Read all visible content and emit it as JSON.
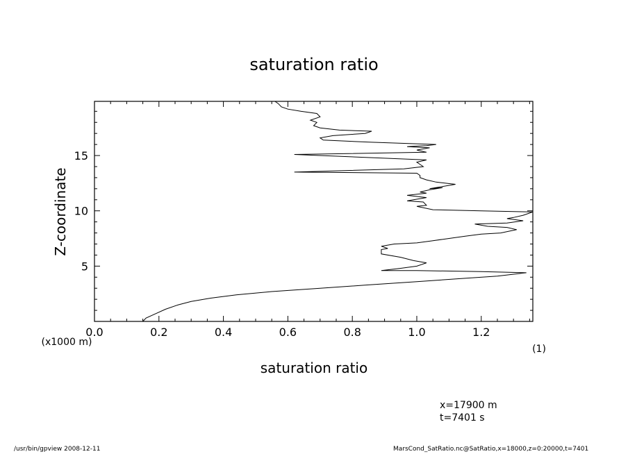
{
  "chart_data": {
    "type": "line",
    "title": "saturation ratio",
    "xlabel": "saturation ratio",
    "xlabel_unit": "(1)",
    "ylabel": "Z-coordinate",
    "ylabel_unit": "(x1000 m)",
    "xlim": [
      0.0,
      1.36
    ],
    "ylim": [
      0.0,
      19.9
    ],
    "xticks": [
      "0.0",
      "0.2",
      "0.4",
      "0.6",
      "0.8",
      "1.0",
      "1.2"
    ],
    "yticks": [
      "5",
      "10",
      "15"
    ],
    "grid": false,
    "series": [
      {
        "x": [
          0.15,
          0.16,
          0.19,
          0.22,
          0.26,
          0.3,
          0.36,
          0.44,
          0.55,
          0.7,
          0.85,
          1.0,
          1.15,
          1.25,
          1.31,
          1.34,
          1.2,
          1.0,
          0.89,
          0.95,
          1.0,
          1.03,
          0.99,
          0.95,
          0.89,
          0.89,
          0.91,
          0.89,
          0.93,
          1.0,
          1.05,
          1.1,
          1.15,
          1.2,
          1.26,
          1.31,
          1.28,
          1.22,
          1.18,
          1.28,
          1.33,
          1.28,
          1.3,
          1.33,
          1.36,
          1.2,
          1.05,
          1.0,
          1.03,
          1.02,
          0.97,
          0.99,
          1.03,
          1.0,
          0.97,
          1.03,
          1.01,
          1.04,
          1.08,
          1.04,
          1.12,
          1.06,
          1.03,
          1.01,
          1.01,
          1.0,
          0.62,
          0.96,
          1.02,
          1.0,
          1.03,
          0.62,
          1.03,
          1.0,
          1.04,
          0.97,
          1.03,
          1.06,
          0.86,
          0.71,
          0.7,
          0.74,
          0.84,
          0.86,
          0.76,
          0.7,
          0.68,
          0.69,
          0.67,
          0.7,
          0.69,
          0.64,
          0.6,
          0.58,
          0.57,
          0.56
        ],
        "y": [
          0.0,
          0.3,
          0.7,
          1.1,
          1.5,
          1.8,
          2.1,
          2.4,
          2.7,
          3.0,
          3.3,
          3.6,
          3.9,
          4.1,
          4.3,
          4.4,
          4.5,
          4.6,
          4.6,
          4.8,
          5.0,
          5.3,
          5.5,
          5.8,
          6.1,
          6.5,
          6.6,
          6.8,
          7.0,
          7.1,
          7.3,
          7.5,
          7.7,
          7.9,
          8.0,
          8.3,
          8.5,
          8.6,
          8.8,
          8.9,
          9.1,
          9.3,
          9.4,
          9.6,
          9.9,
          10.0,
          10.1,
          10.4,
          10.5,
          10.8,
          10.9,
          11.0,
          11.2,
          11.3,
          11.4,
          11.6,
          11.7,
          11.9,
          12.1,
          12.0,
          12.4,
          12.6,
          12.8,
          13.0,
          13.2,
          13.4,
          13.5,
          13.8,
          14.0,
          14.4,
          14.6,
          15.1,
          15.3,
          15.5,
          15.7,
          15.8,
          15.9,
          16.0,
          16.2,
          16.4,
          16.6,
          16.8,
          17.0,
          17.2,
          17.3,
          17.5,
          17.7,
          18.0,
          18.2,
          18.5,
          18.8,
          19.0,
          19.2,
          19.4,
          19.7,
          19.9
        ]
      }
    ]
  },
  "info": {
    "x_value": "x=17900  m",
    "t_value": "t=7401  s"
  },
  "footer": {
    "program": "/usr/bin/gpview   2008-12-11",
    "source": "MarsCond_SatRatio.nc@SatRatio,x=18000,z=0:20000,t=7401"
  }
}
